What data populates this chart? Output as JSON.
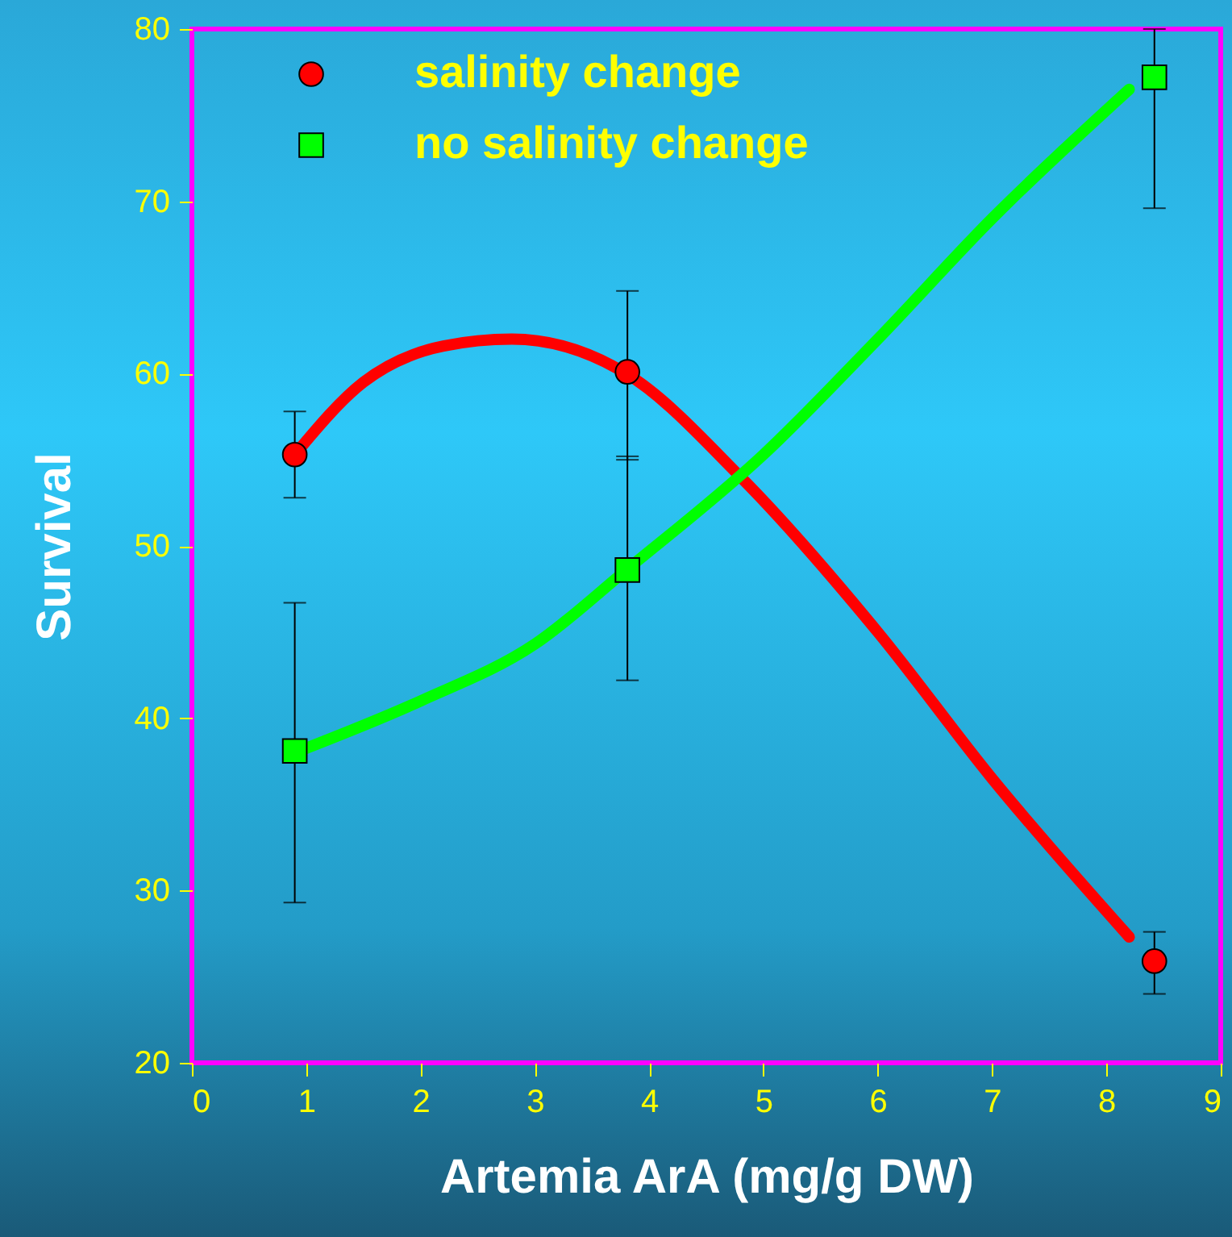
{
  "chart_data": {
    "type": "scatter",
    "xlabel": "Artemia ArA (mg/g DW)",
    "ylabel": "Survival",
    "xlim": [
      0,
      9
    ],
    "ylim": [
      20,
      80
    ],
    "xticks": [
      0,
      1,
      2,
      3,
      4,
      5,
      6,
      7,
      8,
      9
    ],
    "yticks": [
      20,
      30,
      40,
      50,
      60,
      70,
      80
    ],
    "grid": false,
    "legend": "top left",
    "series": [
      {
        "name": "salinity change",
        "color": "#ff0000",
        "marker": "circle",
        "x": [
          0.9,
          3.81,
          8.42
        ],
        "values": [
          55.3,
          60.1,
          25.9
        ],
        "errors": [
          [
            52.8,
            57.8
          ],
          [
            55.0,
            64.8
          ],
          [
            24.0,
            27.6
          ]
        ]
      },
      {
        "name": "no salinity change",
        "color": "#00ff00",
        "marker": "square",
        "x": [
          0.9,
          3.81,
          8.42
        ],
        "values": [
          38.1,
          48.6,
          77.2
        ],
        "errors": [
          [
            29.3,
            46.7
          ],
          [
            42.2,
            55.2
          ],
          [
            69.6,
            80
          ]
        ]
      },
      {
        "type": "line",
        "color": "#ff0000",
        "x": [
          0.9,
          1.5,
          2.2,
          2.8,
          3.8,
          4.8,
          6,
          7,
          8.2
        ],
        "values": [
          55.3,
          59.5,
          61.6,
          62,
          60,
          54,
          45,
          36.5,
          27.3
        ]
      },
      {
        "type": "line",
        "color": "#00ff00",
        "x": [
          0.9,
          2,
          3,
          3.8,
          5,
          6,
          7,
          8.2
        ],
        "values": [
          38,
          41,
          44.3,
          48.6,
          55.3,
          62,
          69,
          76.5
        ]
      }
    ]
  }
}
